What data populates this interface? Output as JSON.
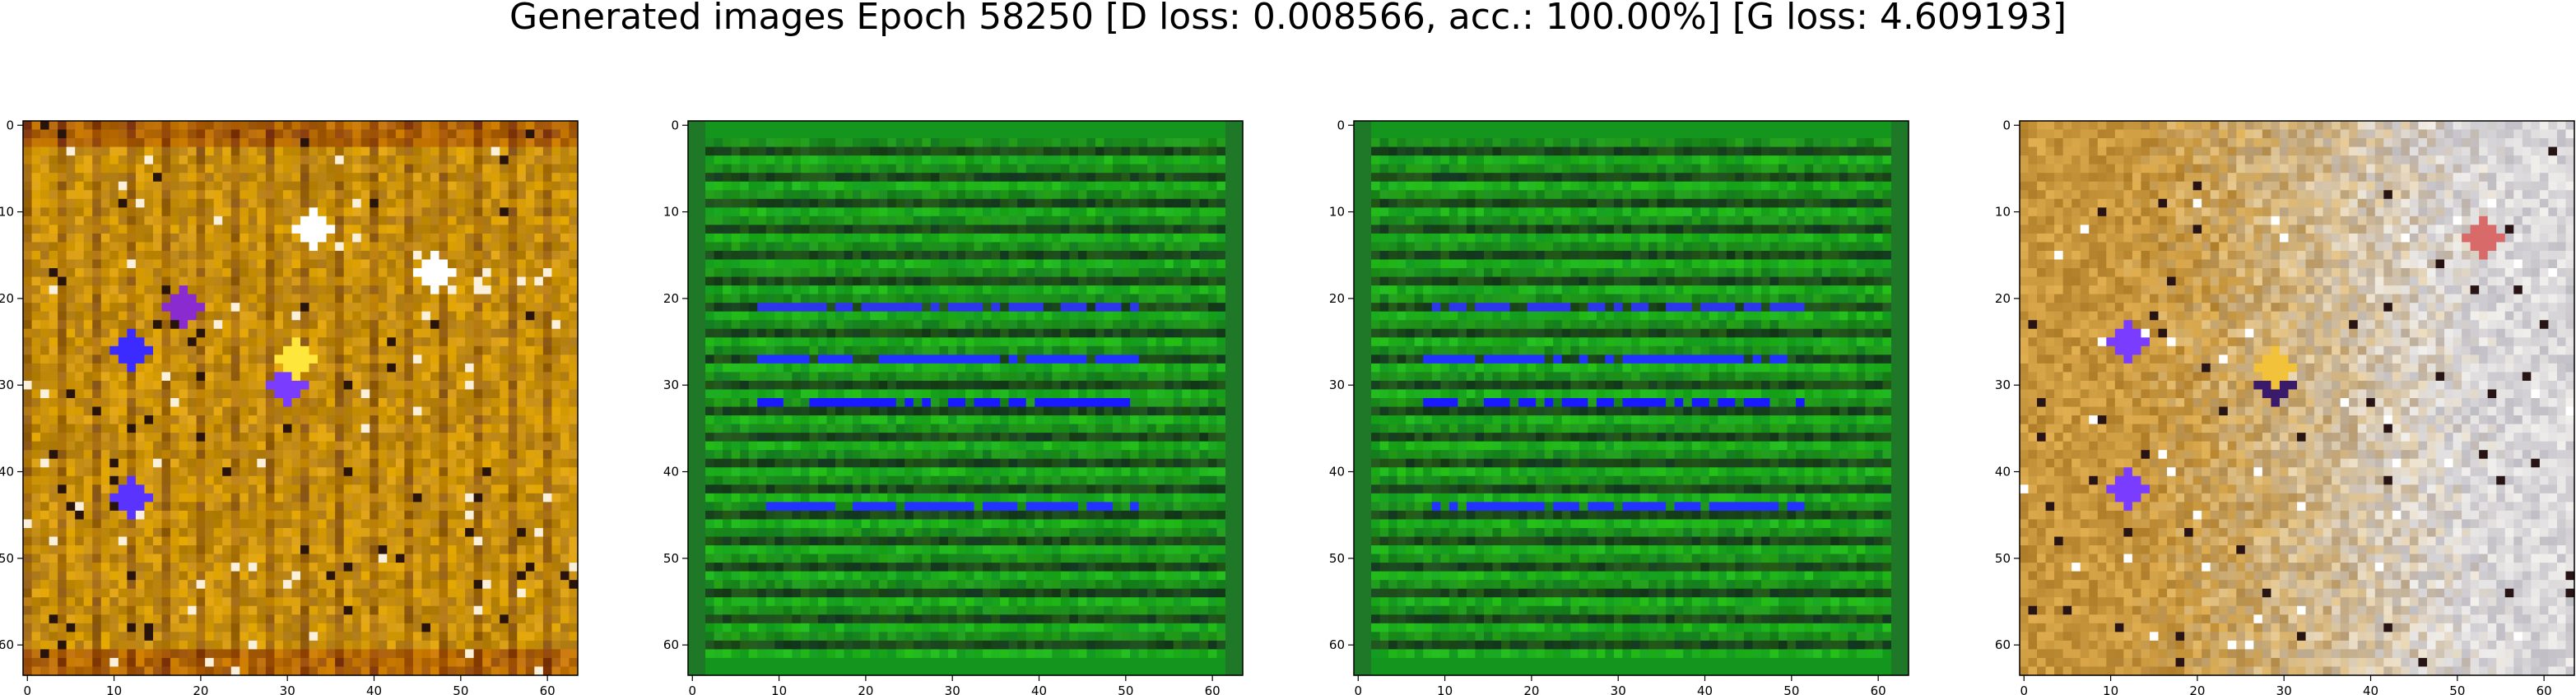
{
  "title": "Generated images Epoch 58250 [D loss: 0.008566, acc.: 100.00%] [G loss: 4.609193]",
  "chart_data": [
    {
      "type": "heatmap",
      "title": "",
      "xlim": [
        0,
        63
      ],
      "ylim": [
        63,
        0
      ],
      "xticks": [
        "0",
        "10",
        "20",
        "30",
        "40",
        "50",
        "60"
      ],
      "yticks": [
        "0",
        "10",
        "20",
        "30",
        "40",
        "50",
        "60"
      ],
      "base_color": "#c8900e",
      "texture": "mustard",
      "features": [
        {
          "x": 12,
          "y": 26,
          "color": "#3b2bff"
        },
        {
          "x": 12,
          "y": 43,
          "color": "#5a33ff"
        },
        {
          "x": 18,
          "y": 21,
          "color": "#8a2bd0"
        },
        {
          "x": 30,
          "y": 30,
          "color": "#7a3cff"
        },
        {
          "x": 31,
          "y": 27,
          "color": "#ffe63a"
        },
        {
          "x": 33,
          "y": 12,
          "color": "#ffffff"
        },
        {
          "x": 47,
          "y": 17,
          "color": "#ffffff"
        }
      ]
    },
    {
      "type": "heatmap",
      "title": "",
      "xlim": [
        0,
        63
      ],
      "ylim": [
        63,
        0
      ],
      "xticks": [
        "0",
        "10",
        "20",
        "30",
        "40",
        "50",
        "60"
      ],
      "yticks": [
        "0",
        "10",
        "20",
        "30",
        "40",
        "50",
        "60"
      ],
      "base_color": "#1c8f1c",
      "texture": "stripes",
      "bands": [
        {
          "y": 21,
          "color": "#2d36e8"
        },
        {
          "y": 27,
          "color": "#2233ff"
        },
        {
          "y": 32,
          "color": "#1a1aff"
        },
        {
          "y": 44,
          "color": "#2233ff"
        }
      ]
    },
    {
      "type": "heatmap",
      "title": "",
      "xlim": [
        0,
        63
      ],
      "ylim": [
        63,
        0
      ],
      "xticks": [
        "0",
        "10",
        "20",
        "30",
        "40",
        "50",
        "60"
      ],
      "yticks": [
        "0",
        "10",
        "20",
        "30",
        "40",
        "50",
        "60"
      ],
      "base_color": "#1c8f1c",
      "texture": "stripes",
      "bands": [
        {
          "y": 21,
          "color": "#2d36e8"
        },
        {
          "y": 27,
          "color": "#2233ff"
        },
        {
          "y": 32,
          "color": "#1a1aff"
        },
        {
          "y": 44,
          "color": "#2233ff"
        }
      ]
    },
    {
      "type": "heatmap",
      "title": "",
      "xlim": [
        0,
        63
      ],
      "ylim": [
        63,
        0
      ],
      "xticks": [
        "0",
        "10",
        "20",
        "30",
        "40",
        "50",
        "60"
      ],
      "yticks": [
        "0",
        "10",
        "20",
        "30",
        "40",
        "50",
        "60"
      ],
      "base_color": "#d9d7d9",
      "texture": "mixed",
      "features": [
        {
          "x": 12,
          "y": 25,
          "color": "#7a3cff"
        },
        {
          "x": 12,
          "y": 42,
          "color": "#7a3cff"
        },
        {
          "x": 29,
          "y": 30,
          "color": "#3a1a6a"
        },
        {
          "x": 29,
          "y": 28,
          "color": "#f2c23a"
        },
        {
          "x": 53,
          "y": 13,
          "color": "#d86a6a"
        }
      ]
    }
  ]
}
